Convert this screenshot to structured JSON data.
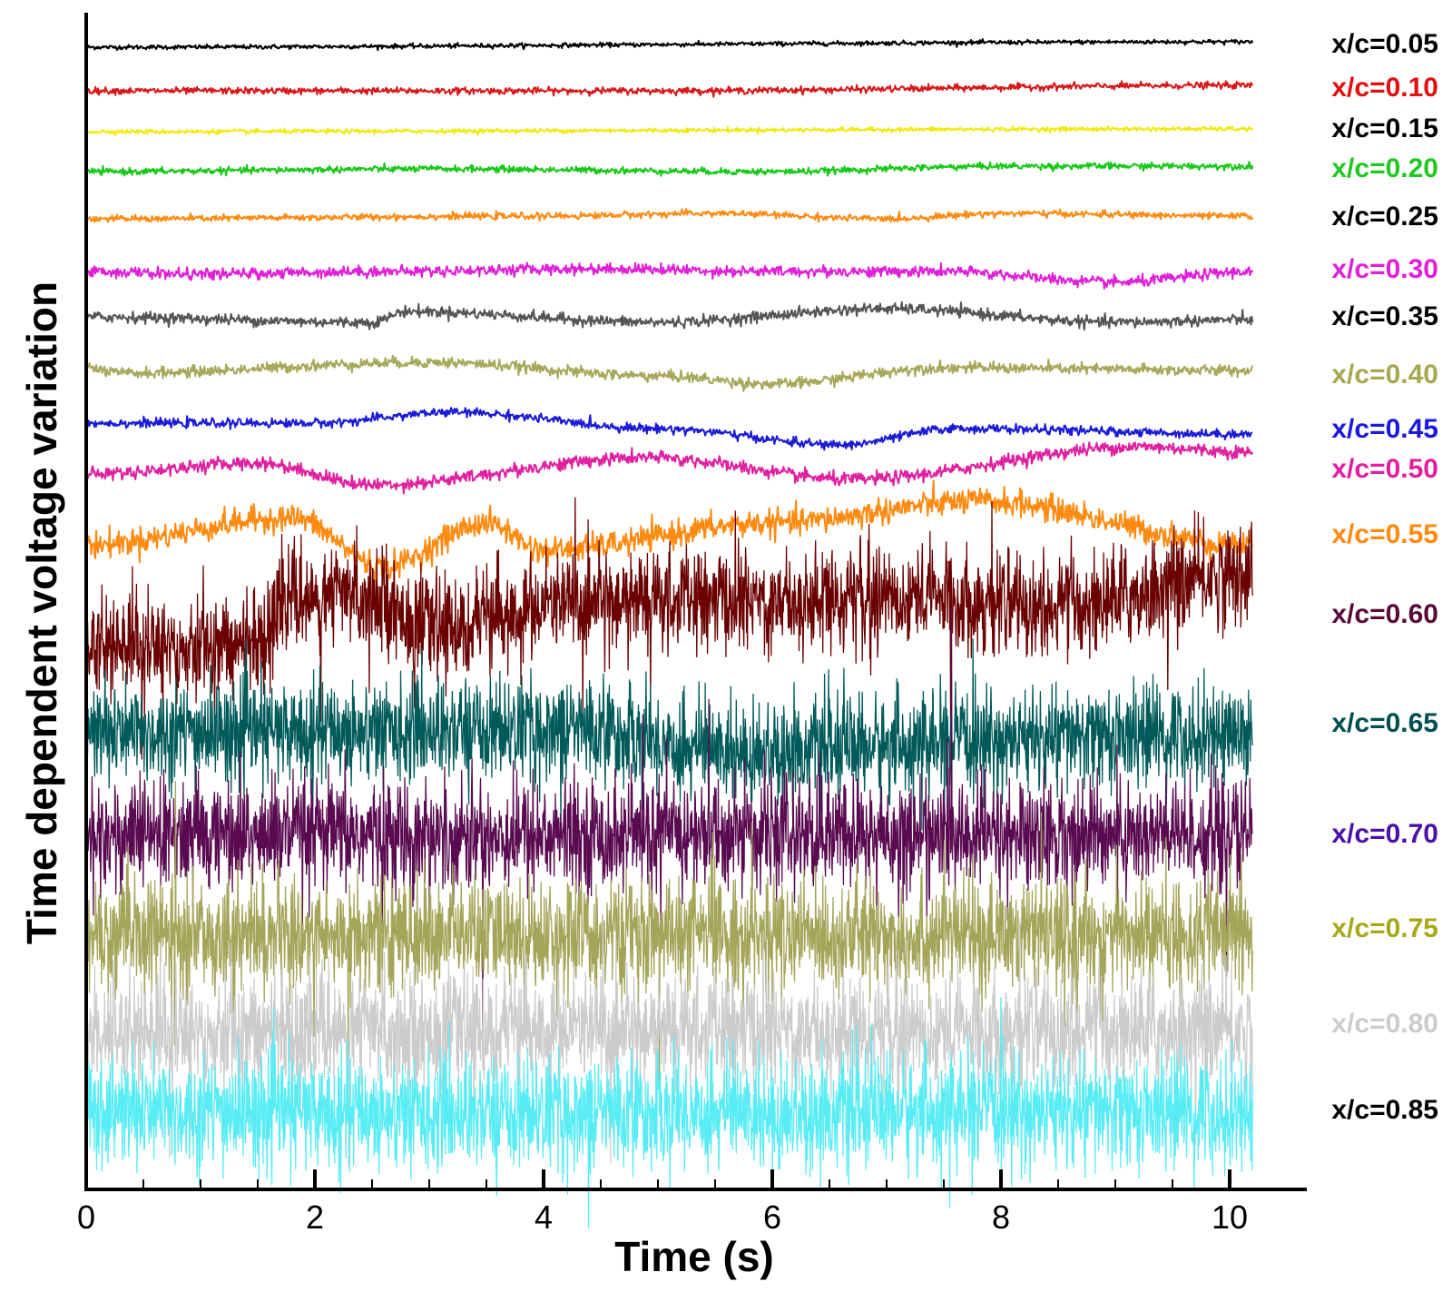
{
  "chart_data": {
    "type": "line",
    "title": "",
    "xlabel": "Time (s)",
    "ylabel": "Time dependent voltage variation",
    "xlim": [
      0,
      10.5
    ],
    "x_ticks": [
      0,
      2,
      4,
      6,
      8,
      10
    ],
    "x_tick_labels": [
      "0",
      "2",
      "4",
      "6",
      "8",
      "10"
    ],
    "y_ticks_shown": false,
    "grid": false,
    "legend": "labels at right end of each trace",
    "series": [
      {
        "name": "x/c=0.05",
        "label_color": "#000000",
        "color": "#000000",
        "noise": 0.02,
        "drift": [
          [
            0,
            0.0
          ],
          [
            10.2,
            0.1
          ]
        ]
      },
      {
        "name": "x/c=0.10",
        "label_color": "#e01010",
        "color": "#d81818",
        "noise": 0.03,
        "drift": [
          [
            0,
            0.0
          ],
          [
            5,
            0.0
          ],
          [
            10.2,
            0.1
          ]
        ]
      },
      {
        "name": "x/c=0.15",
        "label_color": "#000000",
        "color": "#f0ea10",
        "noise": 0.02,
        "drift": [
          [
            0,
            0.0
          ],
          [
            10.2,
            0.05
          ]
        ]
      },
      {
        "name": "x/c=0.20",
        "label_color": "#22c822",
        "color": "#18c818",
        "noise": 0.03,
        "drift": [
          [
            0,
            0.0
          ],
          [
            3,
            0.05
          ],
          [
            6,
            0.0
          ],
          [
            8,
            0.1
          ],
          [
            10.2,
            0.1
          ]
        ]
      },
      {
        "name": "x/c=0.25",
        "label_color": "#000000",
        "color": "#ff8a10",
        "noise": 0.03,
        "drift": [
          [
            0,
            0.0
          ],
          [
            4,
            0.05
          ],
          [
            5.5,
            0.1
          ],
          [
            7,
            0.0
          ],
          [
            8,
            0.1
          ],
          [
            10.2,
            0.05
          ]
        ]
      },
      {
        "name": "x/c=0.30",
        "label_color": "#e020d8",
        "color": "#e020d8",
        "noise": 0.05,
        "drift": [
          [
            0,
            0.0
          ],
          [
            1,
            -0.05
          ],
          [
            2.5,
            0.0
          ],
          [
            4.5,
            0.05
          ],
          [
            6,
            0.0
          ],
          [
            7.5,
            0.0
          ],
          [
            9,
            -0.2
          ],
          [
            10.2,
            0.0
          ]
        ]
      },
      {
        "name": "x/c=0.35",
        "label_color": "#000000",
        "color": "#555555",
        "noise": 0.05,
        "drift": [
          [
            0,
            0.0
          ],
          [
            2.5,
            -0.1
          ],
          [
            2.8,
            0.1
          ],
          [
            5,
            -0.1
          ],
          [
            7,
            0.15
          ],
          [
            9,
            -0.1
          ],
          [
            10.2,
            -0.05
          ]
        ]
      },
      {
        "name": "x/c=0.40",
        "label_color": "#a8a850",
        "color": "#a8a85a",
        "noise": 0.05,
        "drift": [
          [
            0,
            0.0
          ],
          [
            0.3,
            -0.1
          ],
          [
            3,
            0.1
          ],
          [
            5,
            -0.15
          ],
          [
            6,
            -0.3
          ],
          [
            7.5,
            0.0
          ],
          [
            10.2,
            -0.05
          ]
        ]
      },
      {
        "name": "x/c=0.45",
        "label_color": "#1a1ad8",
        "color": "#1a1ad8",
        "noise": 0.04,
        "drift": [
          [
            0,
            0.0
          ],
          [
            2,
            0.0
          ],
          [
            3.2,
            0.2
          ],
          [
            5,
            -0.1
          ],
          [
            6.6,
            -0.4
          ],
          [
            7.6,
            -0.1
          ],
          [
            10.2,
            -0.2
          ]
        ]
      },
      {
        "name": "x/c=0.50",
        "label_color": "#e020a0",
        "color": "#e020a0",
        "noise": 0.06,
        "drift": [
          [
            0,
            0.0
          ],
          [
            1.5,
            0.2
          ],
          [
            2.5,
            -0.2
          ],
          [
            4.9,
            0.3
          ],
          [
            6.7,
            -0.1
          ],
          [
            9.2,
            0.5
          ],
          [
            10.2,
            0.4
          ]
        ]
      },
      {
        "name": "x/c=0.55",
        "label_color": "#ff8a10",
        "color": "#ff8a10",
        "noise": 0.12,
        "drift": [
          [
            0,
            -0.2
          ],
          [
            1.8,
            0.3
          ],
          [
            2.6,
            -0.6
          ],
          [
            3.5,
            0.2
          ],
          [
            4,
            -0.3
          ],
          [
            6,
            0.2
          ],
          [
            7.8,
            0.6
          ],
          [
            10.2,
            -0.2
          ]
        ]
      },
      {
        "name": "x/c=0.60",
        "label_color": "#5a0a38",
        "color": "#6a0000",
        "noise": 0.45,
        "drift": [
          [
            0,
            -0.5
          ],
          [
            1.5,
            -0.5
          ],
          [
            1.7,
            0.3
          ],
          [
            2.5,
            0.4
          ],
          [
            3,
            -0.2
          ],
          [
            4.5,
            0.3
          ],
          [
            6,
            0.3
          ],
          [
            7,
            0.4
          ],
          [
            8.5,
            0.2
          ],
          [
            10.2,
            0.8
          ]
        ]
      },
      {
        "name": "x/c=0.65",
        "label_color": "#005050",
        "color": "#005a5a",
        "noise": 0.45,
        "drift": [
          [
            0,
            0.0
          ],
          [
            4.2,
            0.1
          ],
          [
            5.5,
            -0.3
          ],
          [
            10.2,
            0.0
          ]
        ]
      },
      {
        "name": "x/c=0.70",
        "label_color": "#4a10a8",
        "color": "#5a0a50",
        "noise": 0.5,
        "drift": [
          [
            0,
            0.0
          ],
          [
            10.2,
            0.0
          ]
        ]
      },
      {
        "name": "x/c=0.75",
        "label_color": "#a8a818",
        "color": "#a5a55a",
        "noise": 0.5,
        "drift": [
          [
            0,
            0.0
          ],
          [
            10.2,
            0.0
          ]
        ]
      },
      {
        "name": "x/c=0.80",
        "label_color": "#cccccc",
        "color": "#cccccc",
        "noise": 0.5,
        "drift": [
          [
            0,
            0.0
          ],
          [
            10.2,
            0.0
          ]
        ]
      },
      {
        "name": "x/c=0.85",
        "label_color": "#000000",
        "color": "#58ecf4",
        "noise": 0.5,
        "drift": [
          [
            0,
            0.0
          ],
          [
            10.2,
            0.0
          ]
        ]
      }
    ]
  }
}
